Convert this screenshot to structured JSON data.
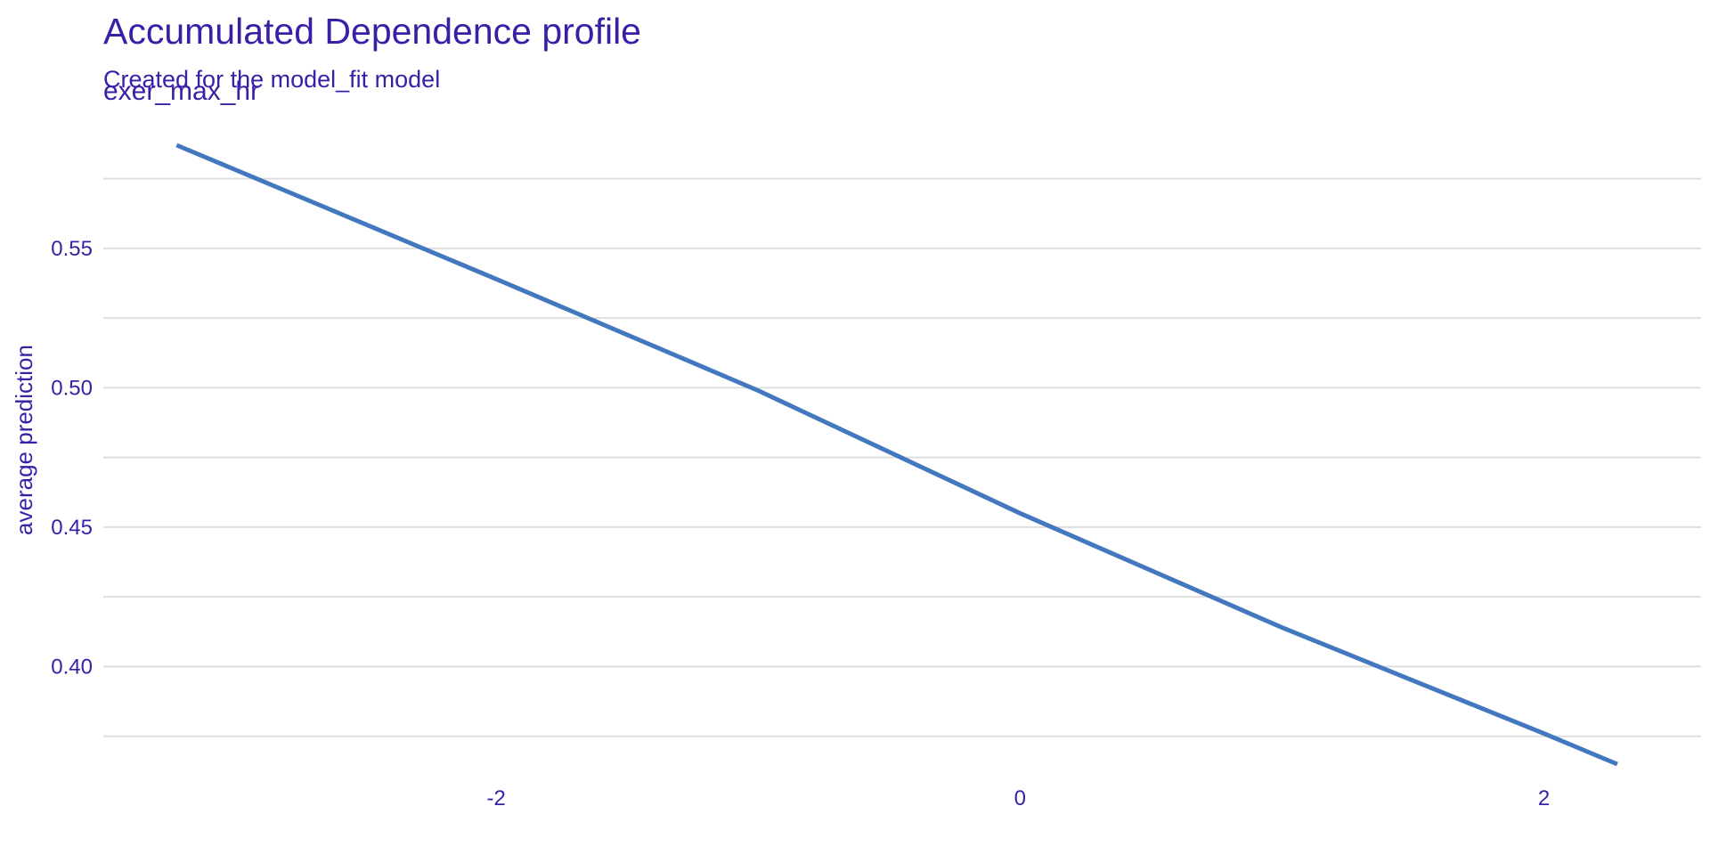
{
  "chart_data": {
    "type": "line",
    "title": "Accumulated Dependence profile",
    "subtitle": "Created for the model_fit model",
    "facet_label": "exer_max_hr",
    "xlabel": "",
    "ylabel": "average prediction",
    "xlim": [
      -3.5,
      2.6
    ],
    "ylim": [
      0.365,
      0.595
    ],
    "x_ticks": [
      -2,
      0,
      2
    ],
    "x_tick_labels": [
      "-2",
      "0",
      "2"
    ],
    "y_major_ticks": [
      0.4,
      0.45,
      0.5,
      0.55
    ],
    "y_tick_labels": [
      "0.40",
      "0.45",
      "0.50",
      "0.55"
    ],
    "y_grid_lines": [
      0.375,
      0.4,
      0.425,
      0.45,
      0.475,
      0.5,
      0.525,
      0.55,
      0.575
    ],
    "grid": true,
    "legend": "none",
    "series": [
      {
        "color": "#4378BF",
        "x": [
          -3.22,
          -2.0,
          -1.0,
          0.0,
          1.0,
          2.0,
          2.28
        ],
        "y": [
          0.587,
          0.539,
          0.499,
          0.455,
          0.414,
          0.376,
          0.365
        ]
      }
    ]
  }
}
